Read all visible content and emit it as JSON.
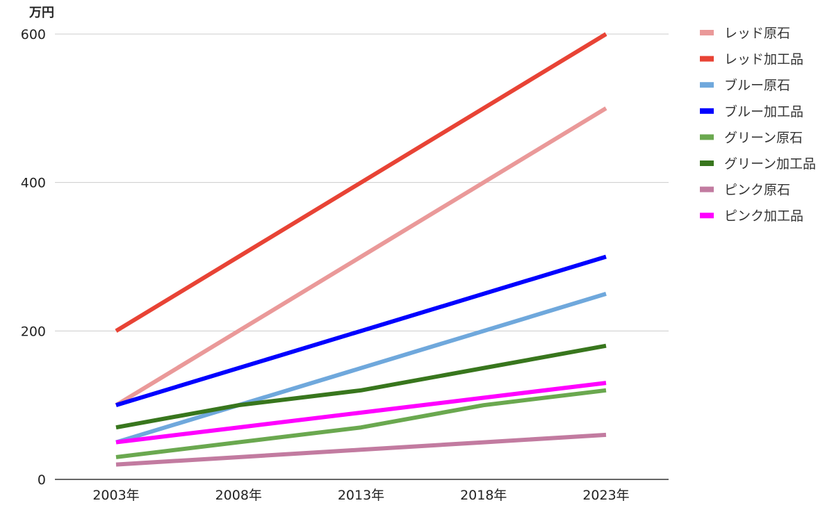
{
  "chart_data": {
    "type": "line",
    "unit_label": "万円",
    "x": [
      "2003年",
      "2008年",
      "2013年",
      "2018年",
      "2023年"
    ],
    "ylim": [
      0,
      600
    ],
    "yticks": [
      0,
      200,
      400,
      600
    ],
    "grid": true,
    "legend_position": "right",
    "series": [
      {
        "name": "レッド原石",
        "color": "#ea9999",
        "values": [
          100,
          200,
          300,
          400,
          500
        ]
      },
      {
        "name": "レッド加工品",
        "color": "#e84335",
        "values": [
          200,
          300,
          400,
          500,
          600
        ]
      },
      {
        "name": "ブルー原石",
        "color": "#6fa8dc",
        "values": [
          50,
          100,
          150,
          200,
          250
        ]
      },
      {
        "name": "ブルー加工品",
        "color": "#0000ff",
        "values": [
          100,
          150,
          200,
          250,
          300
        ]
      },
      {
        "name": "グリーン原石",
        "color": "#6aa84f",
        "values": [
          30,
          50,
          70,
          100,
          120
        ]
      },
      {
        "name": "グリーン加工品",
        "color": "#38761d",
        "values": [
          70,
          100,
          120,
          150,
          180
        ]
      },
      {
        "name": "ピンク原石",
        "color": "#c27ba0",
        "values": [
          20,
          30,
          40,
          50,
          60
        ]
      },
      {
        "name": "ピンク加工品",
        "color": "#ff00ff",
        "values": [
          50,
          70,
          90,
          110,
          130
        ]
      }
    ]
  }
}
